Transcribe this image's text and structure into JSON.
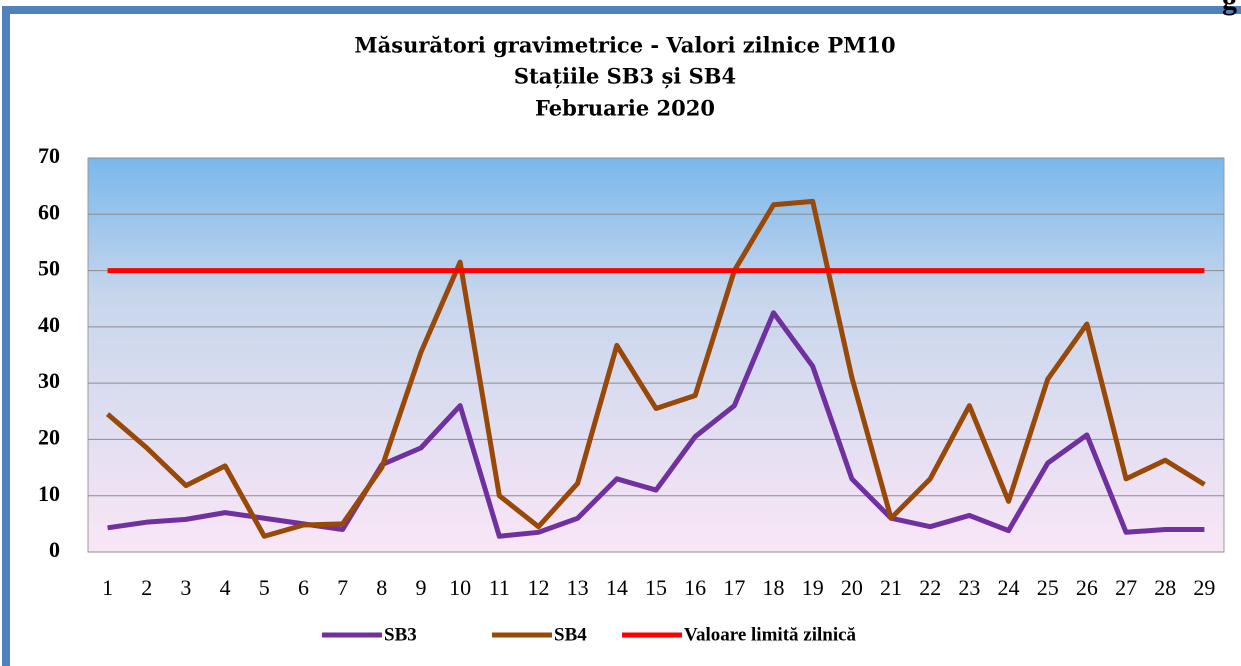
{
  "header_fragment": "g",
  "chart_data": {
    "type": "line",
    "title": [
      "Măsurători gravimetrice - Valori zilnice PM10",
      "Stațiile  SB3 și SB4",
      "Februarie 2020"
    ],
    "categories": [
      "1",
      "2",
      "3",
      "4",
      "5",
      "6",
      "7",
      "8",
      "9",
      "10",
      "11",
      "12",
      "13",
      "14",
      "15",
      "16",
      "17",
      "18",
      "19",
      "20",
      "21",
      "22",
      "23",
      "24",
      "25",
      "26",
      "27",
      "28",
      "29"
    ],
    "series": [
      {
        "name": "SB3",
        "color": "#7030a0",
        "values": [
          4.3,
          5.3,
          5.8,
          7,
          6,
          5,
          4,
          15.5,
          18.5,
          26,
          2.8,
          3.5,
          6,
          13,
          11,
          20.5,
          26,
          42.5,
          33,
          13,
          6,
          4.5,
          6.5,
          3.8,
          15.8,
          20.8,
          3.5,
          4,
          4
        ]
      },
      {
        "name": "SB4",
        "color": "#984807",
        "values": [
          24.5,
          18.5,
          11.8,
          15.3,
          2.8,
          4.8,
          5,
          15,
          35.5,
          51.5,
          10,
          4.5,
          12.2,
          36.7,
          25.5,
          27.8,
          50,
          61.7,
          62.3,
          31,
          6,
          13,
          26,
          9,
          30.7,
          40.5,
          13,
          16.3,
          12
        ]
      },
      {
        "name": "Valoare limită zilnică",
        "color": "#ff0000",
        "values": [
          50,
          50,
          50,
          50,
          50,
          50,
          50,
          50,
          50,
          50,
          50,
          50,
          50,
          50,
          50,
          50,
          50,
          50,
          50,
          50,
          50,
          50,
          50,
          50,
          50,
          50,
          50,
          50,
          50
        ]
      }
    ],
    "ylim": [
      0,
      70
    ],
    "yticks": [
      0,
      10,
      20,
      30,
      40,
      50,
      60,
      70
    ],
    "grid": true,
    "legend": "bottom"
  }
}
